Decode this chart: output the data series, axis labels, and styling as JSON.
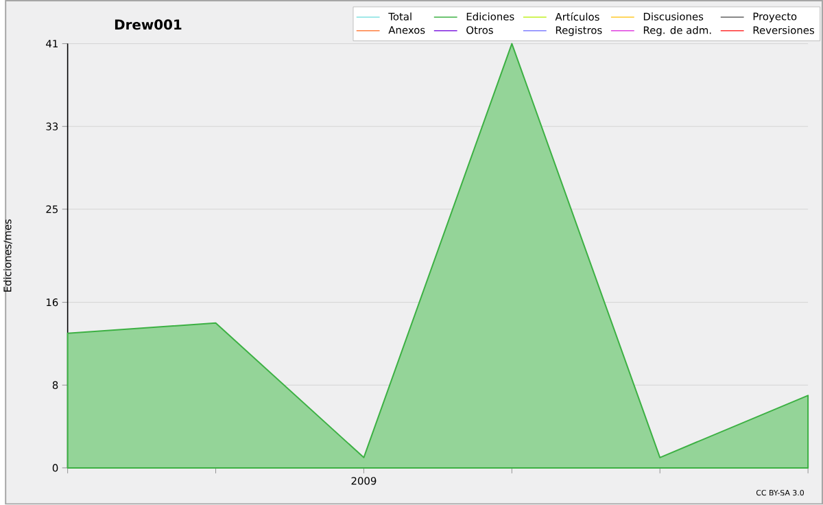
{
  "chart_data": {
    "type": "line",
    "title": "Drew001",
    "ylabel": "Ediciones/mes",
    "categories": [
      null,
      null,
      "2009",
      null,
      null,
      null
    ],
    "ylim": [
      0,
      41
    ],
    "yticks": [
      0,
      8,
      16,
      25,
      33,
      41
    ],
    "grid": "y",
    "legend": "top right",
    "annotations": [
      "CC BY-SA 3.0"
    ],
    "series": [
      {
        "name": "Total",
        "color": "#80e0e0",
        "values": [
          null,
          null,
          null,
          null,
          null,
          null
        ]
      },
      {
        "name": "Ediciones",
        "type": "area",
        "color": "#3cb043",
        "values": [
          13,
          14,
          1,
          41,
          1,
          7
        ]
      },
      {
        "name": "Artículos",
        "color": "#c0f020",
        "values": [
          null,
          null,
          null,
          null,
          null,
          null
        ]
      },
      {
        "name": "Discusiones",
        "color": "#ffc828",
        "values": [
          null,
          null,
          null,
          null,
          null,
          null
        ]
      },
      {
        "name": "Proyecto",
        "color": "#606060",
        "values": [
          null,
          null,
          null,
          null,
          null,
          null
        ]
      },
      {
        "name": "Anexos",
        "color": "#ff8040",
        "values": [
          null,
          null,
          null,
          null,
          null,
          null
        ]
      },
      {
        "name": "Otros",
        "color": "#8020e0",
        "values": [
          null,
          null,
          null,
          null,
          null,
          null
        ]
      },
      {
        "name": "Registros",
        "color": "#8080ff",
        "values": [
          null,
          null,
          null,
          null,
          null,
          null
        ]
      },
      {
        "name": "Reg. de adm.",
        "color": "#e040e0",
        "values": [
          null,
          null,
          null,
          null,
          null,
          null
        ]
      },
      {
        "name": "Reversiones",
        "color": "#ff3030",
        "values": [
          null,
          null,
          null,
          null,
          null,
          null
        ]
      }
    ]
  }
}
